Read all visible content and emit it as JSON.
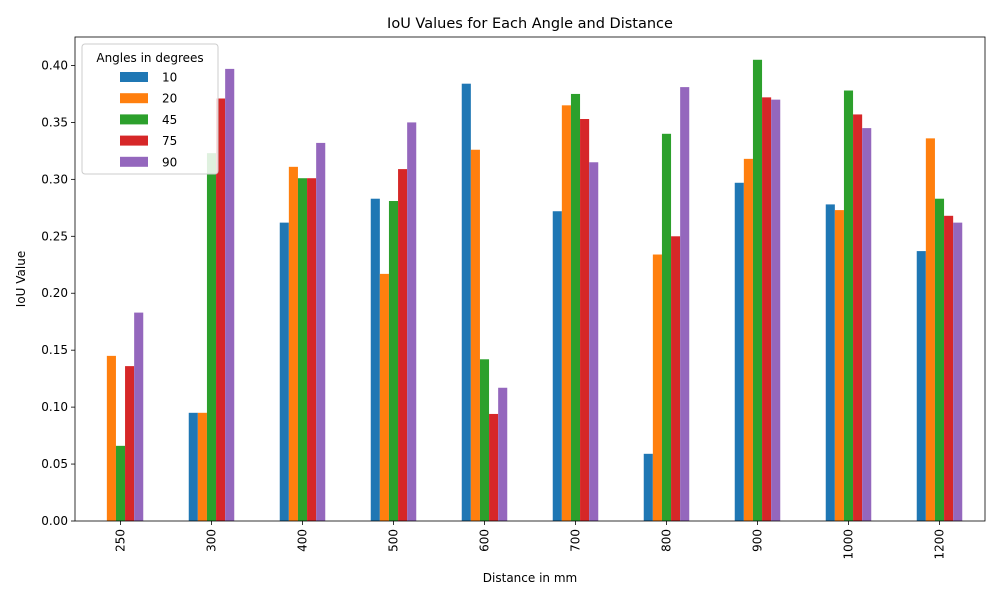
{
  "chart_data": {
    "type": "bar",
    "title": "IoU Values for Each Angle and Distance",
    "xlabel": "Distance in mm",
    "ylabel": "IoU Value",
    "categories": [
      "250",
      "300",
      "400",
      "500",
      "600",
      "700",
      "800",
      "900",
      "1000",
      "1200"
    ],
    "ylim": [
      0,
      0.425
    ],
    "yticks": [
      "0.00",
      "0.05",
      "0.10",
      "0.15",
      "0.20",
      "0.25",
      "0.30",
      "0.35",
      "0.40"
    ],
    "legend_title": "Angles in degrees",
    "legend_position": "top-left",
    "grid": false,
    "series": [
      {
        "name": "10",
        "color": "#1f77b4",
        "values": [
          0.0,
          0.095,
          0.262,
          0.283,
          0.384,
          0.272,
          0.059,
          0.297,
          0.278,
          0.237
        ]
      },
      {
        "name": "20",
        "color": "#ff7f0e",
        "values": [
          0.145,
          0.095,
          0.311,
          0.217,
          0.326,
          0.365,
          0.234,
          0.318,
          0.273,
          0.336
        ]
      },
      {
        "name": "45",
        "color": "#2ca02c",
        "values": [
          0.066,
          0.323,
          0.301,
          0.281,
          0.142,
          0.375,
          0.34,
          0.405,
          0.378,
          0.283
        ]
      },
      {
        "name": "75",
        "color": "#d62728",
        "values": [
          0.136,
          0.371,
          0.301,
          0.309,
          0.094,
          0.353,
          0.25,
          0.372,
          0.357,
          0.268
        ]
      },
      {
        "name": "90",
        "color": "#9467bd",
        "values": [
          0.183,
          0.397,
          0.332,
          0.35,
          0.117,
          0.315,
          0.381,
          0.37,
          0.345,
          0.262
        ]
      }
    ]
  }
}
